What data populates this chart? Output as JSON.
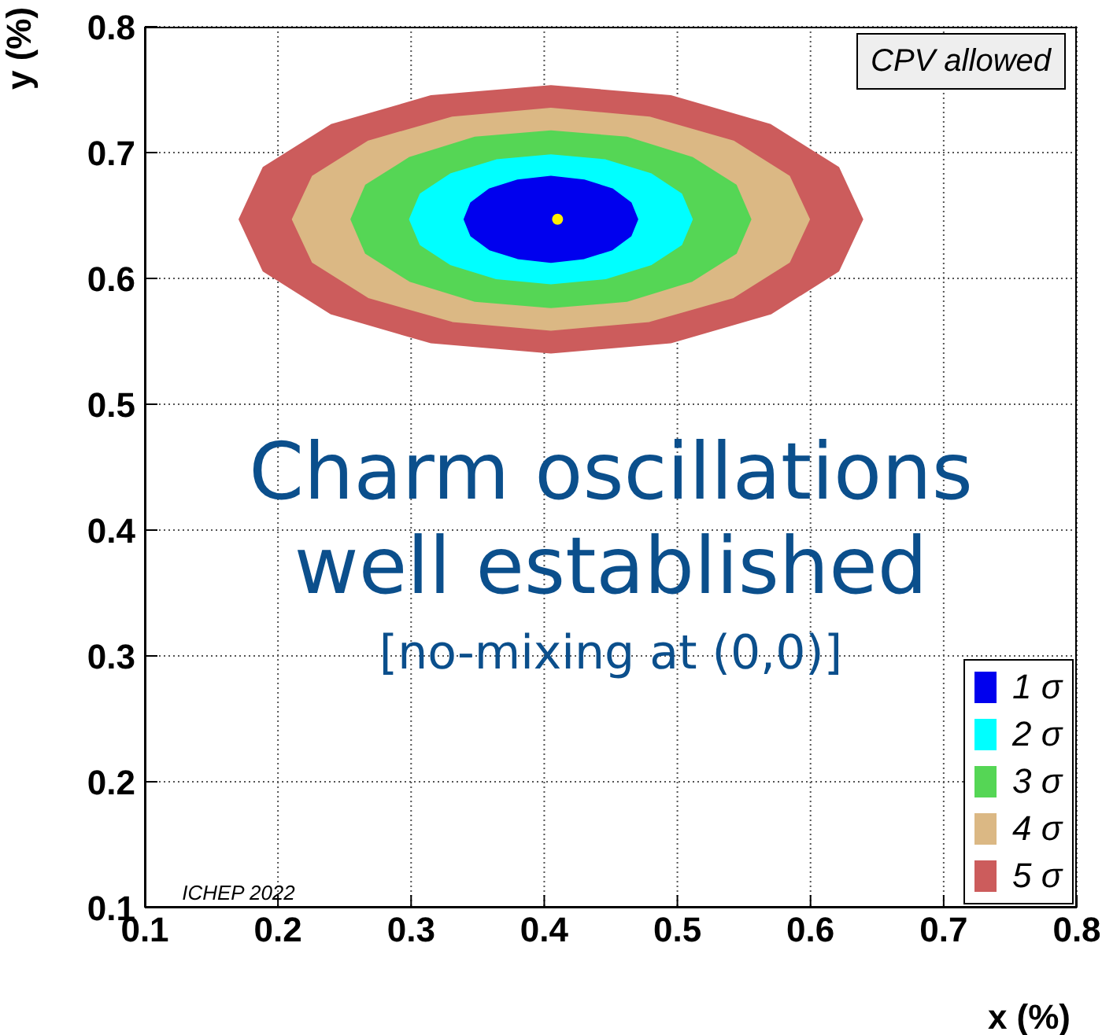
{
  "chart_data": {
    "type": "area",
    "xlabel": "x (%)",
    "ylabel": "y (%)",
    "xlim": [
      0.1,
      0.8
    ],
    "ylim": [
      0.1,
      0.8
    ],
    "xticks": [
      0.1,
      0.2,
      0.3,
      0.4,
      0.5,
      0.6,
      0.7,
      0.8
    ],
    "yticks": [
      0.1,
      0.2,
      0.3,
      0.4,
      0.5,
      0.6,
      0.7,
      0.8
    ],
    "grid": true,
    "legend": "bottom right",
    "annotations": [
      "CPV allowed",
      "Charm oscillations",
      "well established",
      "[no-mixing at (0,0)]",
      "ICHEP 2022"
    ],
    "series": [
      {
        "name": "1 σ",
        "color": "#0000ee",
        "x": [
          0.47,
          0.465,
          0.451,
          0.43,
          0.405,
          0.38,
          0.359,
          0.345,
          0.34,
          0.345,
          0.359,
          0.38,
          0.405,
          0.43,
          0.451,
          0.465
        ],
        "values": [
          0.647,
          0.66,
          0.671,
          0.678,
          0.681,
          0.678,
          0.671,
          0.66,
          0.647,
          0.634,
          0.623,
          0.616,
          0.613,
          0.616,
          0.623,
          0.634
        ]
      },
      {
        "name": "2 σ",
        "color": "#00ffff",
        "x": [
          0.511,
          0.503,
          0.48,
          0.446,
          0.405,
          0.364,
          0.33,
          0.307,
          0.299,
          0.307,
          0.33,
          0.364,
          0.405,
          0.446,
          0.48,
          0.503
        ],
        "values": [
          0.647,
          0.667,
          0.683,
          0.694,
          0.698,
          0.694,
          0.683,
          0.667,
          0.647,
          0.627,
          0.611,
          0.6,
          0.596,
          0.6,
          0.611,
          0.627
        ]
      },
      {
        "name": "3 σ",
        "color": "#55d655",
        "x": [
          0.555,
          0.544,
          0.511,
          0.462,
          0.405,
          0.348,
          0.299,
          0.266,
          0.255,
          0.266,
          0.299,
          0.348,
          0.405,
          0.462,
          0.511,
          0.544
        ],
        "values": [
          0.647,
          0.674,
          0.696,
          0.712,
          0.717,
          0.712,
          0.696,
          0.674,
          0.647,
          0.62,
          0.598,
          0.582,
          0.577,
          0.582,
          0.598,
          0.62
        ]
      },
      {
        "name": "4 σ",
        "color": "#dbb884",
        "x": [
          0.599,
          0.584,
          0.542,
          0.479,
          0.405,
          0.331,
          0.268,
          0.226,
          0.211,
          0.226,
          0.268,
          0.331,
          0.405,
          0.479,
          0.542,
          0.584
        ],
        "values": [
          0.647,
          0.681,
          0.709,
          0.728,
          0.735,
          0.728,
          0.709,
          0.681,
          0.647,
          0.613,
          0.585,
          0.566,
          0.559,
          0.566,
          0.585,
          0.613
        ]
      },
      {
        "name": "5 σ",
        "color": "#cc5c5c",
        "x": [
          0.639,
          0.621,
          0.57,
          0.495,
          0.405,
          0.315,
          0.24,
          0.189,
          0.171,
          0.189,
          0.24,
          0.315,
          0.405,
          0.495,
          0.57,
          0.621
        ],
        "values": [
          0.647,
          0.688,
          0.722,
          0.745,
          0.753,
          0.745,
          0.722,
          0.688,
          0.647,
          0.606,
          0.572,
          0.549,
          0.541,
          0.549,
          0.572,
          0.606
        ]
      },
      {
        "type": "scatter",
        "color": "#ffee00",
        "x": [
          0.41
        ],
        "values": [
          0.647
        ]
      }
    ]
  }
}
